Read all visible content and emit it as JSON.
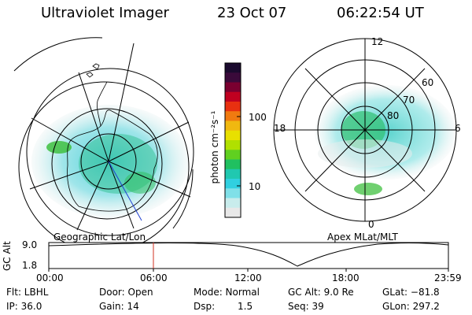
{
  "header": {
    "instrument": "Ultraviolet Imager",
    "date": "23 Oct 07",
    "time": "06:22:54 UT"
  },
  "colorbar": {
    "unit_label": "photon cm⁻²s⁻¹",
    "ticks": [
      "100",
      "10"
    ],
    "colors": [
      "#1a0a2e",
      "#3a0a3a",
      "#7a0030",
      "#c00020",
      "#e83010",
      "#f07a10",
      "#f0b810",
      "#e8e000",
      "#b0e000",
      "#60d020",
      "#20c060",
      "#20c8b0",
      "#30d0e0",
      "#80e0e8",
      "#c8ecec",
      "#e8e8e8"
    ]
  },
  "left_map": {
    "caption": "Geographic Lat/Lon"
  },
  "right_map": {
    "caption": "Apex MLat/MLT",
    "mlt_labels": {
      "top": "12",
      "left": "18",
      "right": "6",
      "bottom": "0"
    },
    "lat_labels": [
      "60",
      "70",
      "80"
    ]
  },
  "altitude_plot": {
    "ylabel": "GC Alt",
    "yticks": [
      "9.0",
      "1.8"
    ],
    "xticks": [
      "00:00",
      "06:00",
      "12:00",
      "18:00",
      "23:59"
    ],
    "marker_color": "#d03020"
  },
  "info": {
    "flt": "Flt: LBHL",
    "ip": "IP: 36.0",
    "door": "Door: Open",
    "gain": "Gain: 14",
    "mode": "Mode: Normal",
    "dsp": "Dsp:",
    "dsp_val": "1.5",
    "gc_alt": "GC Alt: 9.0 Re",
    "seq": "Seq: 39",
    "glat": "GLat: −81.8",
    "glon": "GLon: 297.2"
  }
}
